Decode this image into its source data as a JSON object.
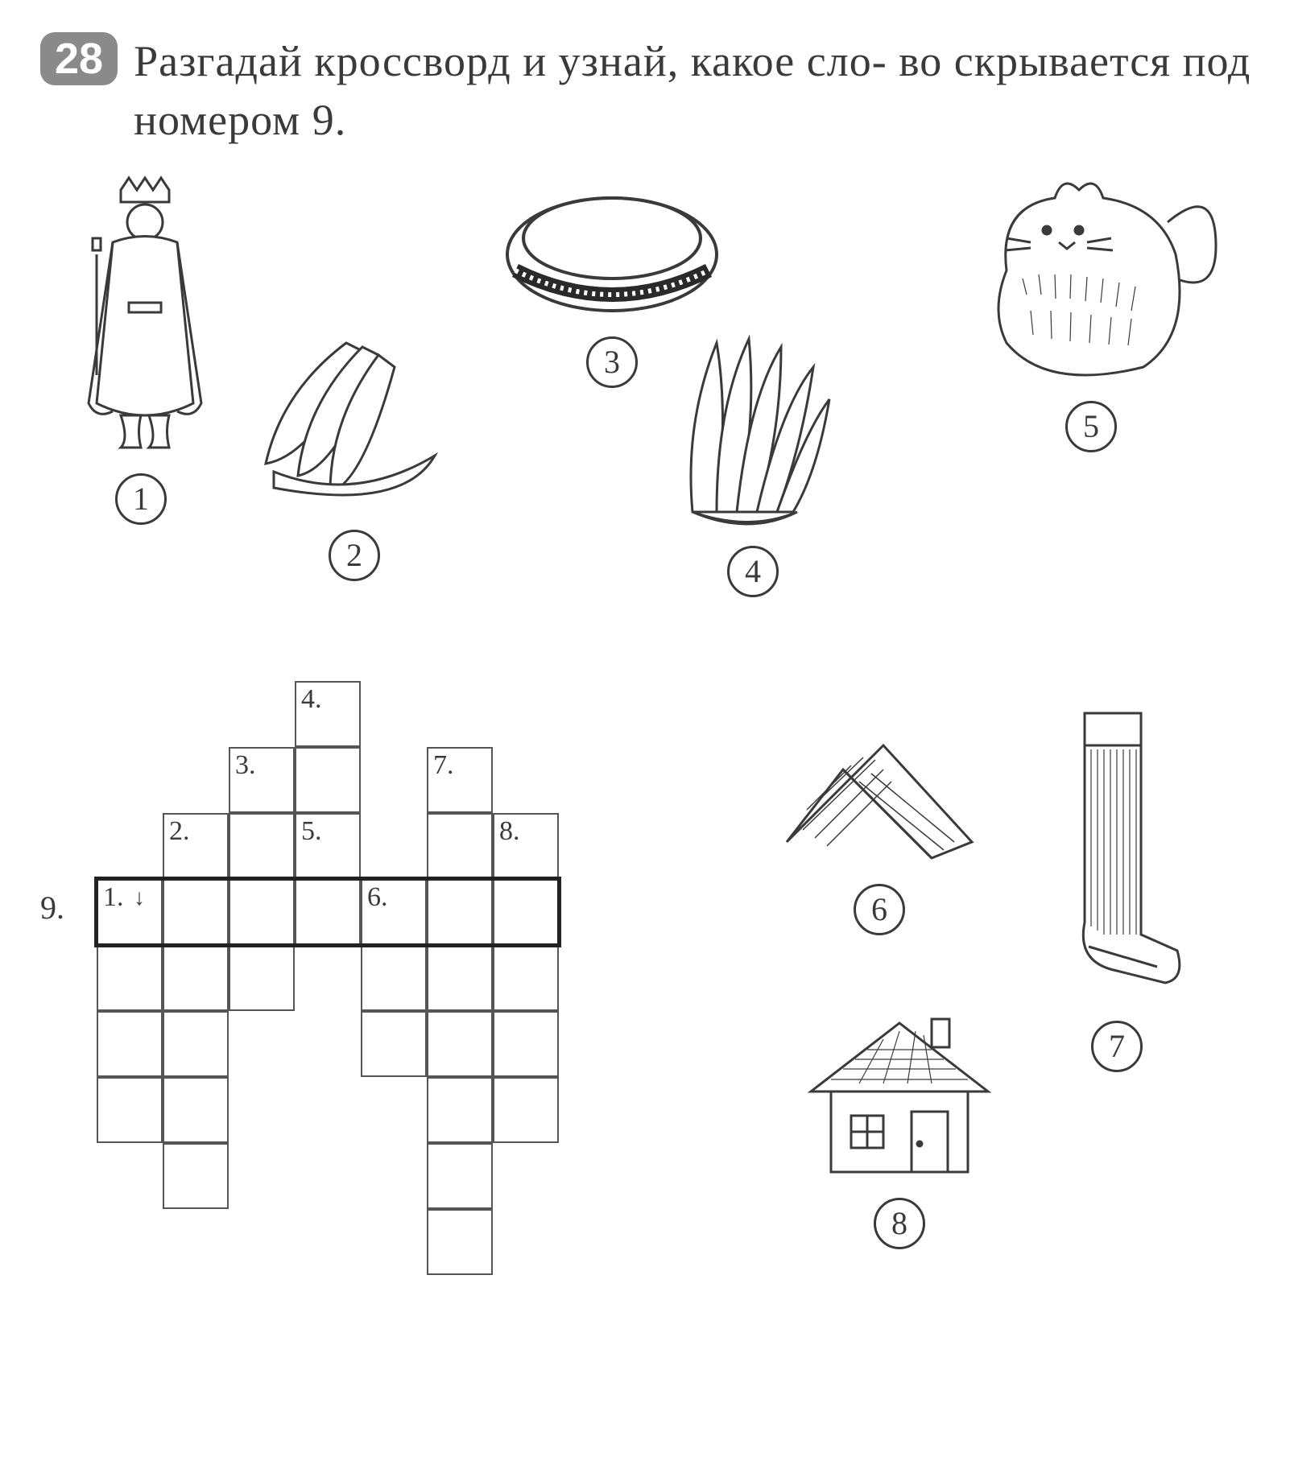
{
  "exercise_number": "28",
  "instruction": "Разгадай кроссворд и узнай, какое сло-\nво скрывается под номером 9.",
  "clue_labels": {
    "c1": "1",
    "c2": "2",
    "c3": "3",
    "c4": "4",
    "c5": "5",
    "c6": "6",
    "c7": "7",
    "c8": "8"
  },
  "clue_icons": {
    "c1": "king",
    "c2": "bananas",
    "c3": "ring",
    "c4": "wing",
    "c5": "cat",
    "c6": "roof",
    "c7": "stocking",
    "c8": "house"
  },
  "grid": {
    "cell_size": 82,
    "row9_label": "9.",
    "cell_numbers": {
      "n1": "1.",
      "n2": "2.",
      "n3": "3.",
      "n4": "4.",
      "n5": "5.",
      "n6": "6.",
      "n7": "7.",
      "n8": "8."
    },
    "columns": [
      {
        "id": 1,
        "col": 0,
        "top_row": 3,
        "len": 4,
        "num_row": 3
      },
      {
        "id": 2,
        "col": 1,
        "top_row": 2,
        "len": 6,
        "num_row": 2
      },
      {
        "id": 3,
        "col": 2,
        "top_row": 1,
        "len": 4,
        "num_row": 1
      },
      {
        "id": 4,
        "col": 3,
        "top_row": 0,
        "len": 4,
        "num_row": 0
      },
      {
        "id": 5,
        "col": 3,
        "top_row": 2,
        "len": 0,
        "num_row": 2,
        "num_only": true
      },
      {
        "id": 6,
        "col": 4,
        "top_row": 3,
        "len": 3,
        "num_row": 3
      },
      {
        "id": 7,
        "col": 5,
        "top_row": 1,
        "len": 8,
        "num_row": 1
      },
      {
        "id": 8,
        "col": 6,
        "top_row": 2,
        "len": 5,
        "num_row": 2
      }
    ],
    "row9": {
      "row": 3,
      "start_col": 0,
      "len": 7
    }
  },
  "colors": {
    "stroke": "#3a3a3a",
    "badge_bg": "#8a8a8a",
    "badge_fg": "#ffffff",
    "page_bg": "#ffffff"
  }
}
